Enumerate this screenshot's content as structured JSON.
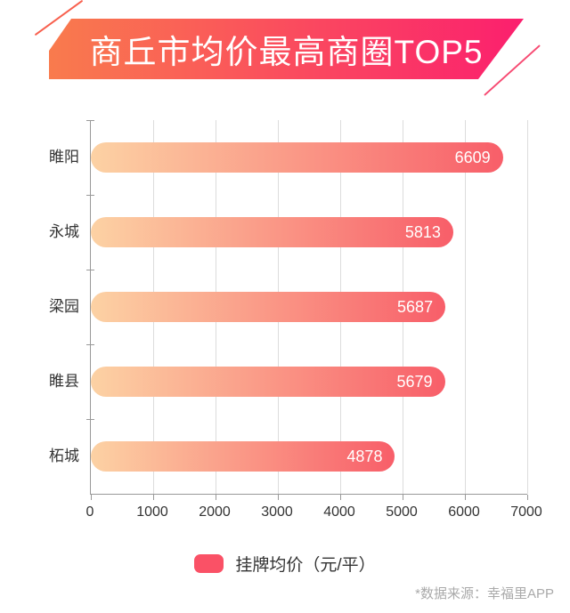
{
  "banner": {
    "title": "商丘市均价最高商圈TOP5"
  },
  "chart_data": {
    "type": "bar",
    "orientation": "horizontal",
    "title": "商丘市均价最高商圈TOP5",
    "categories": [
      "睢阳",
      "永城",
      "梁园",
      "睢县",
      "柘城"
    ],
    "values": [
      6609,
      5813,
      5687,
      5679,
      4878
    ],
    "series": [
      {
        "name": "挂牌均价（元/平）",
        "values": [
          6609,
          5813,
          5687,
          5679,
          4878
        ]
      }
    ],
    "xlabel": "",
    "ylabel": "",
    "xlim": [
      0,
      7000
    ],
    "x_ticks": [
      "0",
      "1000",
      "2000",
      "3000",
      "4000",
      "5000",
      "6000",
      "7000"
    ],
    "grid": true,
    "legend_position": "bottom"
  },
  "legend": {
    "label": "挂牌均价（元/平）"
  },
  "footer": {
    "source_note": "*数据来源：幸福里APP"
  },
  "colors": {
    "banner_gradient_start": "#f97b4d",
    "banner_gradient_end": "#fb1f6e",
    "accent_line_topleft": "#f8604e",
    "accent_line_bottomright": "#f74a72",
    "bar_gradient_start": "#fcd2a4",
    "bar_gradient_end": "#f85e69",
    "legend_swatch": "#fa5166",
    "grid_line": "#dcdcdc",
    "axis_line": "#999999",
    "label_text": "#333333",
    "value_text": "#ffffff",
    "footer_text": "#aaaaaa"
  }
}
